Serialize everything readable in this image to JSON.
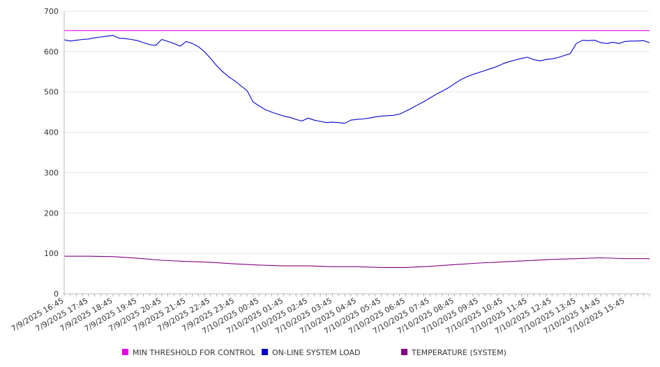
{
  "chart_data": {
    "type": "line",
    "ylim": [
      0,
      700
    ],
    "yticks": [
      0,
      100,
      200,
      300,
      400,
      500,
      600,
      700
    ],
    "x_range": [
      "7/9/2025 16:45",
      "7/10/2025 16:45"
    ],
    "x_tick_labels": [
      "7/9/2025 16:45",
      "7/9/2025 17:45",
      "7/9/2025 18:45",
      "7/9/2025 19:45",
      "7/9/2025 20:45",
      "7/9/2025 21:45",
      "7/9/2025 22:45",
      "7/9/2025 23:45",
      "7/10/2025 00:45",
      "7/10/2025 01:45",
      "7/10/2025 02:45",
      "7/10/2025 03:45",
      "7/10/2025 04:45",
      "7/10/2025 05:45",
      "7/10/2025 06:45",
      "7/10/2025 07:45",
      "7/10/2025 08:45",
      "7/10/2025 09:45",
      "7/10/2025 10:45",
      "7/10/2025 11:45",
      "7/10/2025 12:45",
      "7/10/2025 13:45",
      "7/10/2025 14:45",
      "7/10/2025 15:45"
    ],
    "grid": true,
    "legend_position": "bottom",
    "series": [
      {
        "name": "MIN THRESHOLD FOR CONTROL",
        "color": "#e000e0",
        "points": [
          [
            "7/9/2025 16:45",
            652
          ],
          [
            "7/10/2025 16:45",
            652
          ]
        ]
      },
      {
        "name": "ON-LINE SYSTEM LOAD",
        "color": "#0000cc",
        "points": [
          [
            "7/9/2025 16:45",
            629
          ],
          [
            "7/9/2025 17:00",
            626
          ],
          [
            "7/9/2025 17:15",
            628
          ],
          [
            "7/9/2025 17:30",
            630
          ],
          [
            "7/9/2025 17:45",
            631
          ],
          [
            "7/9/2025 18:00",
            634
          ],
          [
            "7/9/2025 18:15",
            636
          ],
          [
            "7/9/2025 18:30",
            638
          ],
          [
            "7/9/2025 18:45",
            640
          ],
          [
            "7/9/2025 19:00",
            633
          ],
          [
            "7/9/2025 19:15",
            632
          ],
          [
            "7/9/2025 19:30",
            630
          ],
          [
            "7/9/2025 19:45",
            627
          ],
          [
            "7/9/2025 20:00",
            622
          ],
          [
            "7/9/2025 20:15",
            617
          ],
          [
            "7/9/2025 20:30",
            615
          ],
          [
            "7/9/2025 20:45",
            630
          ],
          [
            "7/9/2025 21:00",
            625
          ],
          [
            "7/9/2025 21:15",
            620
          ],
          [
            "7/9/2025 21:30",
            613
          ],
          [
            "7/9/2025 21:45",
            625
          ],
          [
            "7/9/2025 22:00",
            620
          ],
          [
            "7/9/2025 22:15",
            612
          ],
          [
            "7/9/2025 22:30",
            600
          ],
          [
            "7/9/2025 22:45",
            583
          ],
          [
            "7/9/2025 23:00",
            565
          ],
          [
            "7/9/2025 23:15",
            550
          ],
          [
            "7/9/2025 23:30",
            537
          ],
          [
            "7/9/2025 23:45",
            527
          ],
          [
            "7/10/2025 00:00",
            515
          ],
          [
            "7/10/2025 00:15",
            503
          ],
          [
            "7/10/2025 00:30",
            475
          ],
          [
            "7/10/2025 00:45",
            465
          ],
          [
            "7/10/2025 01:00",
            456
          ],
          [
            "7/10/2025 01:15",
            450
          ],
          [
            "7/10/2025 01:30",
            445
          ],
          [
            "7/10/2025 01:45",
            440
          ],
          [
            "7/10/2025 02:00",
            437
          ],
          [
            "7/10/2025 02:15",
            432
          ],
          [
            "7/10/2025 02:30",
            428
          ],
          [
            "7/10/2025 02:45",
            435
          ],
          [
            "7/10/2025 03:00",
            430
          ],
          [
            "7/10/2025 03:15",
            427
          ],
          [
            "7/10/2025 03:30",
            424
          ],
          [
            "7/10/2025 03:45",
            425
          ],
          [
            "7/10/2025 04:00",
            424
          ],
          [
            "7/10/2025 04:15",
            422
          ],
          [
            "7/10/2025 04:30",
            430
          ],
          [
            "7/10/2025 04:45",
            432
          ],
          [
            "7/10/2025 05:00",
            433
          ],
          [
            "7/10/2025 05:15",
            435
          ],
          [
            "7/10/2025 05:30",
            438
          ],
          [
            "7/10/2025 05:45",
            440
          ],
          [
            "7/10/2025 06:00",
            441
          ],
          [
            "7/10/2025 06:15",
            442
          ],
          [
            "7/10/2025 06:30",
            445
          ],
          [
            "7/10/2025 06:45",
            452
          ],
          [
            "7/10/2025 07:00",
            460
          ],
          [
            "7/10/2025 07:15",
            468
          ],
          [
            "7/10/2025 07:30",
            476
          ],
          [
            "7/10/2025 07:45",
            485
          ],
          [
            "7/10/2025 08:00",
            494
          ],
          [
            "7/10/2025 08:15",
            502
          ],
          [
            "7/10/2025 08:30",
            510
          ],
          [
            "7/10/2025 08:45",
            520
          ],
          [
            "7/10/2025 09:00",
            530
          ],
          [
            "7/10/2025 09:15",
            537
          ],
          [
            "7/10/2025 09:30",
            543
          ],
          [
            "7/10/2025 09:45",
            548
          ],
          [
            "7/10/2025 10:00",
            553
          ],
          [
            "7/10/2025 10:15",
            558
          ],
          [
            "7/10/2025 10:30",
            563
          ],
          [
            "7/10/2025 10:45",
            570
          ],
          [
            "7/10/2025 11:00",
            575
          ],
          [
            "7/10/2025 11:15",
            579
          ],
          [
            "7/10/2025 11:30",
            583
          ],
          [
            "7/10/2025 11:45",
            586
          ],
          [
            "7/10/2025 12:00",
            580
          ],
          [
            "7/10/2025 12:15",
            577
          ],
          [
            "7/10/2025 12:30",
            580
          ],
          [
            "7/10/2025 12:45",
            582
          ],
          [
            "7/10/2025 13:00",
            585
          ],
          [
            "7/10/2025 13:15",
            590
          ],
          [
            "7/10/2025 13:30",
            595
          ],
          [
            "7/10/2025 13:45",
            620
          ],
          [
            "7/10/2025 14:00",
            628
          ],
          [
            "7/10/2025 14:15",
            627
          ],
          [
            "7/10/2025 14:30",
            628
          ],
          [
            "7/10/2025 14:45",
            622
          ],
          [
            "7/10/2025 15:00",
            620
          ],
          [
            "7/10/2025 15:15",
            623
          ],
          [
            "7/10/2025 15:30",
            620
          ],
          [
            "7/10/2025 15:45",
            625
          ],
          [
            "7/10/2025 16:00",
            626
          ],
          [
            "7/10/2025 16:15",
            626
          ],
          [
            "7/10/2025 16:30",
            627
          ],
          [
            "7/10/2025 16:45",
            622
          ]
        ]
      },
      {
        "name": "TEMPERATURE (SYSTEM)",
        "color": "#800080",
        "points": [
          [
            "7/9/2025 16:45",
            93
          ],
          [
            "7/9/2025 17:45",
            93
          ],
          [
            "7/9/2025 18:45",
            92
          ],
          [
            "7/9/2025 19:45",
            88
          ],
          [
            "7/9/2025 20:45",
            83
          ],
          [
            "7/9/2025 21:45",
            80
          ],
          [
            "7/9/2025 22:45",
            78
          ],
          [
            "7/9/2025 23:45",
            74
          ],
          [
            "7/10/2025 00:45",
            71
          ],
          [
            "7/10/2025 01:45",
            69
          ],
          [
            "7/10/2025 02:45",
            69
          ],
          [
            "7/10/2025 03:45",
            67
          ],
          [
            "7/10/2025 04:45",
            67
          ],
          [
            "7/10/2025 05:45",
            65
          ],
          [
            "7/10/2025 06:45",
            65
          ],
          [
            "7/10/2025 07:45",
            68
          ],
          [
            "7/10/2025 08:45",
            72
          ],
          [
            "7/10/2025 09:45",
            76
          ],
          [
            "7/10/2025 10:45",
            79
          ],
          [
            "7/10/2025 11:45",
            82
          ],
          [
            "7/10/2025 12:45",
            85
          ],
          [
            "7/10/2025 13:45",
            87
          ],
          [
            "7/10/2025 14:45",
            89
          ],
          [
            "7/10/2025 15:45",
            87
          ],
          [
            "7/10/2025 16:45",
            87
          ]
        ]
      }
    ]
  }
}
